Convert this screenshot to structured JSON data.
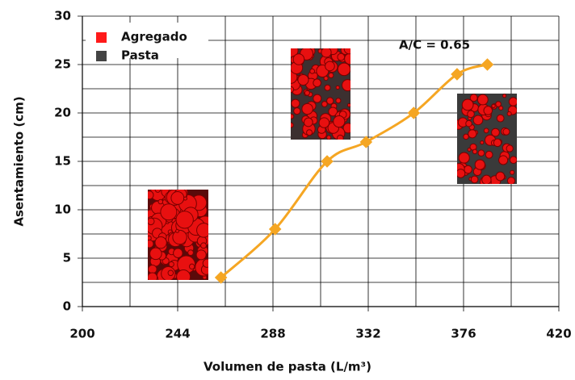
{
  "chart_data": {
    "type": "line",
    "x_label": "Volumen de pasta (L/m³)",
    "y_label": "Asentamiento (cm)",
    "annotation": "A/C = 0.65",
    "legend": [
      {
        "name": "Agregado",
        "color": "#ff1a1a"
      },
      {
        "name": "Pasta",
        "color": "#444444"
      }
    ],
    "series": [
      {
        "color": "#f5a623",
        "x": [
          264,
          289,
          313,
          331,
          353,
          373,
          387
        ],
        "values": [
          3,
          8,
          15,
          17,
          20,
          24,
          25
        ]
      }
    ],
    "xlim": [
      200,
      420
    ],
    "xticks": [
      200,
      244,
      288,
      332,
      376,
      420
    ],
    "x_minor_grid": [
      222,
      266,
      310,
      354,
      398
    ],
    "ylim": [
      0,
      30
    ],
    "yticks": [
      0,
      5,
      10,
      15,
      20,
      25,
      30
    ],
    "y_minor_grid": [
      2.5,
      7.5,
      12.5,
      17.5,
      22.5,
      27.5
    ],
    "grid": true
  }
}
